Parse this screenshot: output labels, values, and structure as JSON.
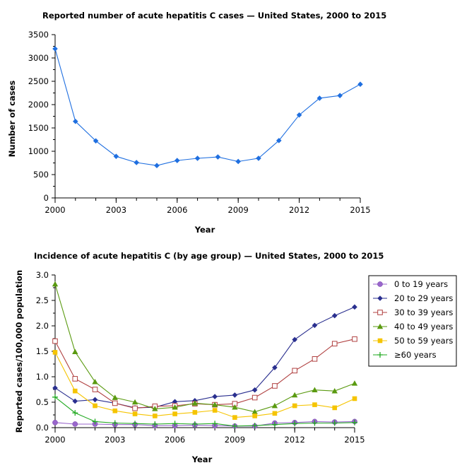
{
  "chart_data": [
    {
      "type": "line",
      "title": "Reported number of acute hepatitis C cases — United States, 2000 to 2015",
      "xlabel": "Year",
      "ylabel": "Number of cases",
      "xlim": [
        2000,
        2015
      ],
      "ylim": [
        0,
        3500
      ],
      "xticks": [
        "2000",
        "2003",
        "2006",
        "2009",
        "2012",
        "2015"
      ],
      "yticks": [
        "0",
        "500",
        "1000",
        "1500",
        "2000",
        "2500",
        "3000",
        "3500"
      ],
      "grid": false,
      "x": [
        2000,
        2001,
        2002,
        2003,
        2004,
        2005,
        2006,
        2007,
        2008,
        2009,
        2010,
        2011,
        2012,
        2013,
        2014,
        2015
      ],
      "series": [
        {
          "color": "#1f6fe0",
          "marker": "diamond",
          "values": [
            3197,
            1640,
            1223,
            891,
            758,
            694,
            802,
            849,
            878,
            781,
            850,
            1229,
            1778,
            2138,
            2194,
            2436
          ]
        }
      ]
    },
    {
      "type": "line",
      "title": "Incidence of acute hepatitis C (by age group) — United States, 2000 to 2015",
      "xlabel": "Year",
      "ylabel": "Reported cases/100,000 population",
      "xlim": [
        2000,
        2015
      ],
      "ylim": [
        0,
        3.0
      ],
      "xticks": [
        "2000",
        "2003",
        "2006",
        "2009",
        "2012",
        "2015"
      ],
      "yticks": [
        "0.0",
        "0.5",
        "1.0",
        "1.5",
        "2.0",
        "2.5",
        "3.0"
      ],
      "grid": false,
      "legend_position": "right",
      "x": [
        2000,
        2001,
        2002,
        2003,
        2004,
        2005,
        2006,
        2007,
        2008,
        2009,
        2010,
        2011,
        2012,
        2013,
        2014,
        2015
      ],
      "series": [
        {
          "name": "0 to 19 years",
          "color": "#9966cc",
          "marker": "circle",
          "values": [
            0.1,
            0.07,
            0.07,
            0.06,
            0.06,
            0.04,
            0.04,
            0.05,
            0.04,
            0.03,
            0.03,
            0.09,
            0.1,
            0.12,
            0.11,
            0.12
          ]
        },
        {
          "name": "20 to 29 years",
          "color": "#2a2f8f",
          "marker": "diamond",
          "values": [
            0.78,
            0.52,
            0.55,
            0.48,
            0.39,
            0.4,
            0.51,
            0.53,
            0.61,
            0.64,
            0.74,
            1.18,
            1.73,
            2.01,
            2.2,
            2.37
          ]
        },
        {
          "name": "30 to 39 years",
          "color": "#b04040",
          "marker": "square-open",
          "values": [
            1.7,
            0.96,
            0.75,
            0.48,
            0.38,
            0.42,
            0.43,
            0.47,
            0.45,
            0.47,
            0.59,
            0.82,
            1.12,
            1.35,
            1.65,
            1.74
          ]
        },
        {
          "name": "40 to 49 years",
          "color": "#5a9a10",
          "marker": "triangle",
          "values": [
            2.82,
            1.49,
            0.9,
            0.59,
            0.5,
            0.37,
            0.4,
            0.48,
            0.45,
            0.4,
            0.31,
            0.43,
            0.64,
            0.74,
            0.72,
            0.87
          ]
        },
        {
          "name": "50 to 59 years",
          "color": "#f5c400",
          "marker": "square",
          "values": [
            1.48,
            0.72,
            0.43,
            0.33,
            0.27,
            0.23,
            0.27,
            0.3,
            0.34,
            0.2,
            0.23,
            0.28,
            0.43,
            0.45,
            0.39,
            0.57
          ]
        },
        {
          "name": "≥60 years",
          "color": "#22aa22",
          "marker": "plus",
          "values": [
            0.6,
            0.29,
            0.12,
            0.09,
            0.08,
            0.07,
            0.08,
            0.07,
            0.08,
            0.03,
            0.04,
            0.06,
            0.08,
            0.09,
            0.09,
            0.1
          ]
        }
      ]
    }
  ]
}
